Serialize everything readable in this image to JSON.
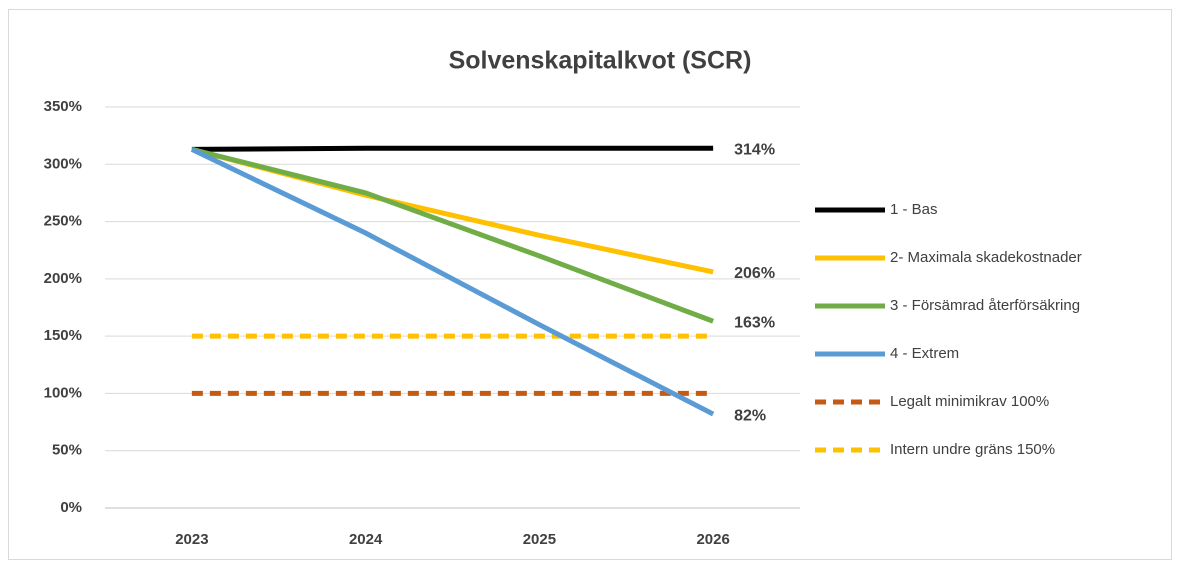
{
  "chart_data": {
    "type": "line",
    "title": "Solvenskapitalkvot (SCR)",
    "categories": [
      "2023",
      "2024",
      "2025",
      "2026"
    ],
    "series": [
      {
        "name": "1 - Bas",
        "color": "#000000",
        "dashed": false,
        "values": [
          313,
          314,
          314,
          314
        ],
        "value_labels": [
          null,
          null,
          null,
          "314%"
        ]
      },
      {
        "name": "2- Maximala skadekostnader",
        "color": "#ffc000",
        "dashed": false,
        "values": [
          313,
          273,
          238,
          206
        ],
        "value_labels": [
          null,
          null,
          null,
          "206%"
        ]
      },
      {
        "name": "3 - Försämrad återförsäkring",
        "color": "#70ad47",
        "dashed": false,
        "values": [
          313,
          275,
          220,
          163
        ],
        "value_labels": [
          null,
          null,
          null,
          "163%"
        ]
      },
      {
        "name": "4 - Extrem",
        "color": "#5b9bd5",
        "dashed": false,
        "values": [
          313,
          240,
          160,
          82
        ],
        "value_labels": [
          null,
          null,
          null,
          "82%"
        ]
      },
      {
        "name": "Legalt minimikrav 100%",
        "color": "#c55a11",
        "dashed": true,
        "values": [
          100,
          100,
          100,
          100
        ]
      },
      {
        "name": "Intern undre gräns 150%",
        "color": "#ffc000",
        "dashed": true,
        "values": [
          150,
          150,
          150,
          150
        ]
      }
    ],
    "ylim": [
      0,
      350
    ],
    "yticks": [
      {
        "value": 0,
        "label": "0%"
      },
      {
        "value": 50,
        "label": "50%"
      },
      {
        "value": 100,
        "label": "100%"
      },
      {
        "value": 150,
        "label": "150%"
      },
      {
        "value": 200,
        "label": "200%"
      },
      {
        "value": 250,
        "label": "250%"
      },
      {
        "value": 300,
        "label": "300%"
      },
      {
        "value": 350,
        "label": "350%"
      }
    ],
    "grid": true,
    "legend": "right"
  }
}
